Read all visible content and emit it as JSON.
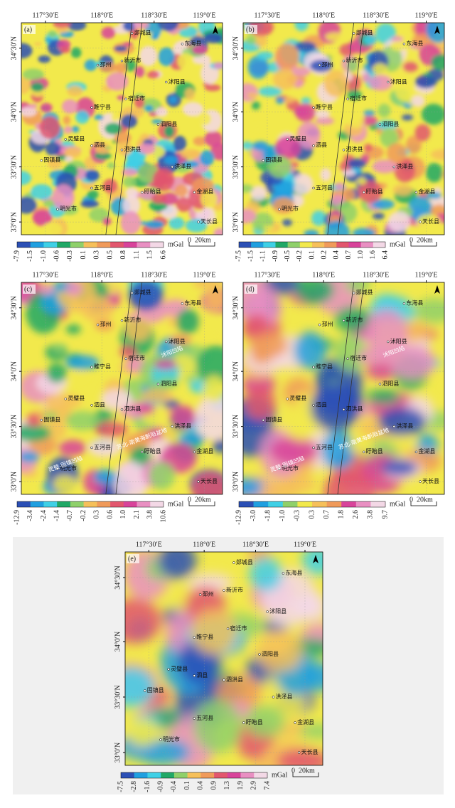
{
  "lon_labels": [
    "117°30′E",
    "118°0′E",
    "118°30′E",
    "119°0′E"
  ],
  "lat_labels": [
    "34°30′N",
    "34°0′N",
    "33°30′N",
    "33°0′N"
  ],
  "unit": "mGal",
  "scale_bar": [
    "0",
    "20km"
  ],
  "places": [
    "郯城县",
    "东海县",
    "新沂市",
    "邳州",
    "沭阳县",
    "宿迁市",
    "睢宁县",
    "泗阳县",
    "灵璧县",
    "泗县",
    "泗洪县",
    "固镇县",
    "五河县",
    "洪泽县",
    "盱眙县",
    "明光市",
    "金湖县",
    "天长县"
  ],
  "panels": [
    {
      "label": "(a)",
      "colorbar": [
        "-7.9",
        "-1.5",
        "-1.0",
        "-0.6",
        "-0.3",
        "0.1",
        "0.3",
        "0.5",
        "0.8",
        "1.1",
        "1.5",
        "6.6"
      ]
    },
    {
      "label": "(b)",
      "colorbar": [
        "-7.5",
        "-1.5",
        "-1.1",
        "-0.9",
        "-0.5",
        "-0.2",
        "0.1",
        "0.2",
        "0.4",
        "0.7",
        "1.0",
        "1.6",
        "6.4"
      ]
    },
    {
      "label": "(c)",
      "colorbar": [
        "-12.9",
        "-3.4",
        "-2.4",
        "-1.4",
        "-0.7",
        "-0.2",
        "0.3",
        "0.6",
        "1.0",
        "2.1",
        "3.8",
        "10.6"
      ],
      "annotations": [
        "沭阳凹陷",
        "灵璧-固镇凹陷",
        "苏北-南黄海断陷盆地"
      ]
    },
    {
      "label": "(d)",
      "colorbar": [
        "-12.9",
        "-3.0",
        "-1.8",
        "-1.0",
        "-0.3",
        "0.3",
        "0.7",
        "1.8",
        "2.6",
        "3.8",
        "9.7"
      ],
      "annotations": [
        "沭阳凹陷",
        "灵璧-固镇凹陷",
        "苏北-南黄海断陷盆地"
      ]
    },
    {
      "label": "(e)",
      "colorbar": [
        "-7.5",
        "-2.8",
        "-1.6",
        "-0.9",
        "-0.4",
        "0.1",
        "0.4",
        "0.9",
        "1.3",
        "1.9",
        "2.9",
        "7.4"
      ]
    }
  ]
}
